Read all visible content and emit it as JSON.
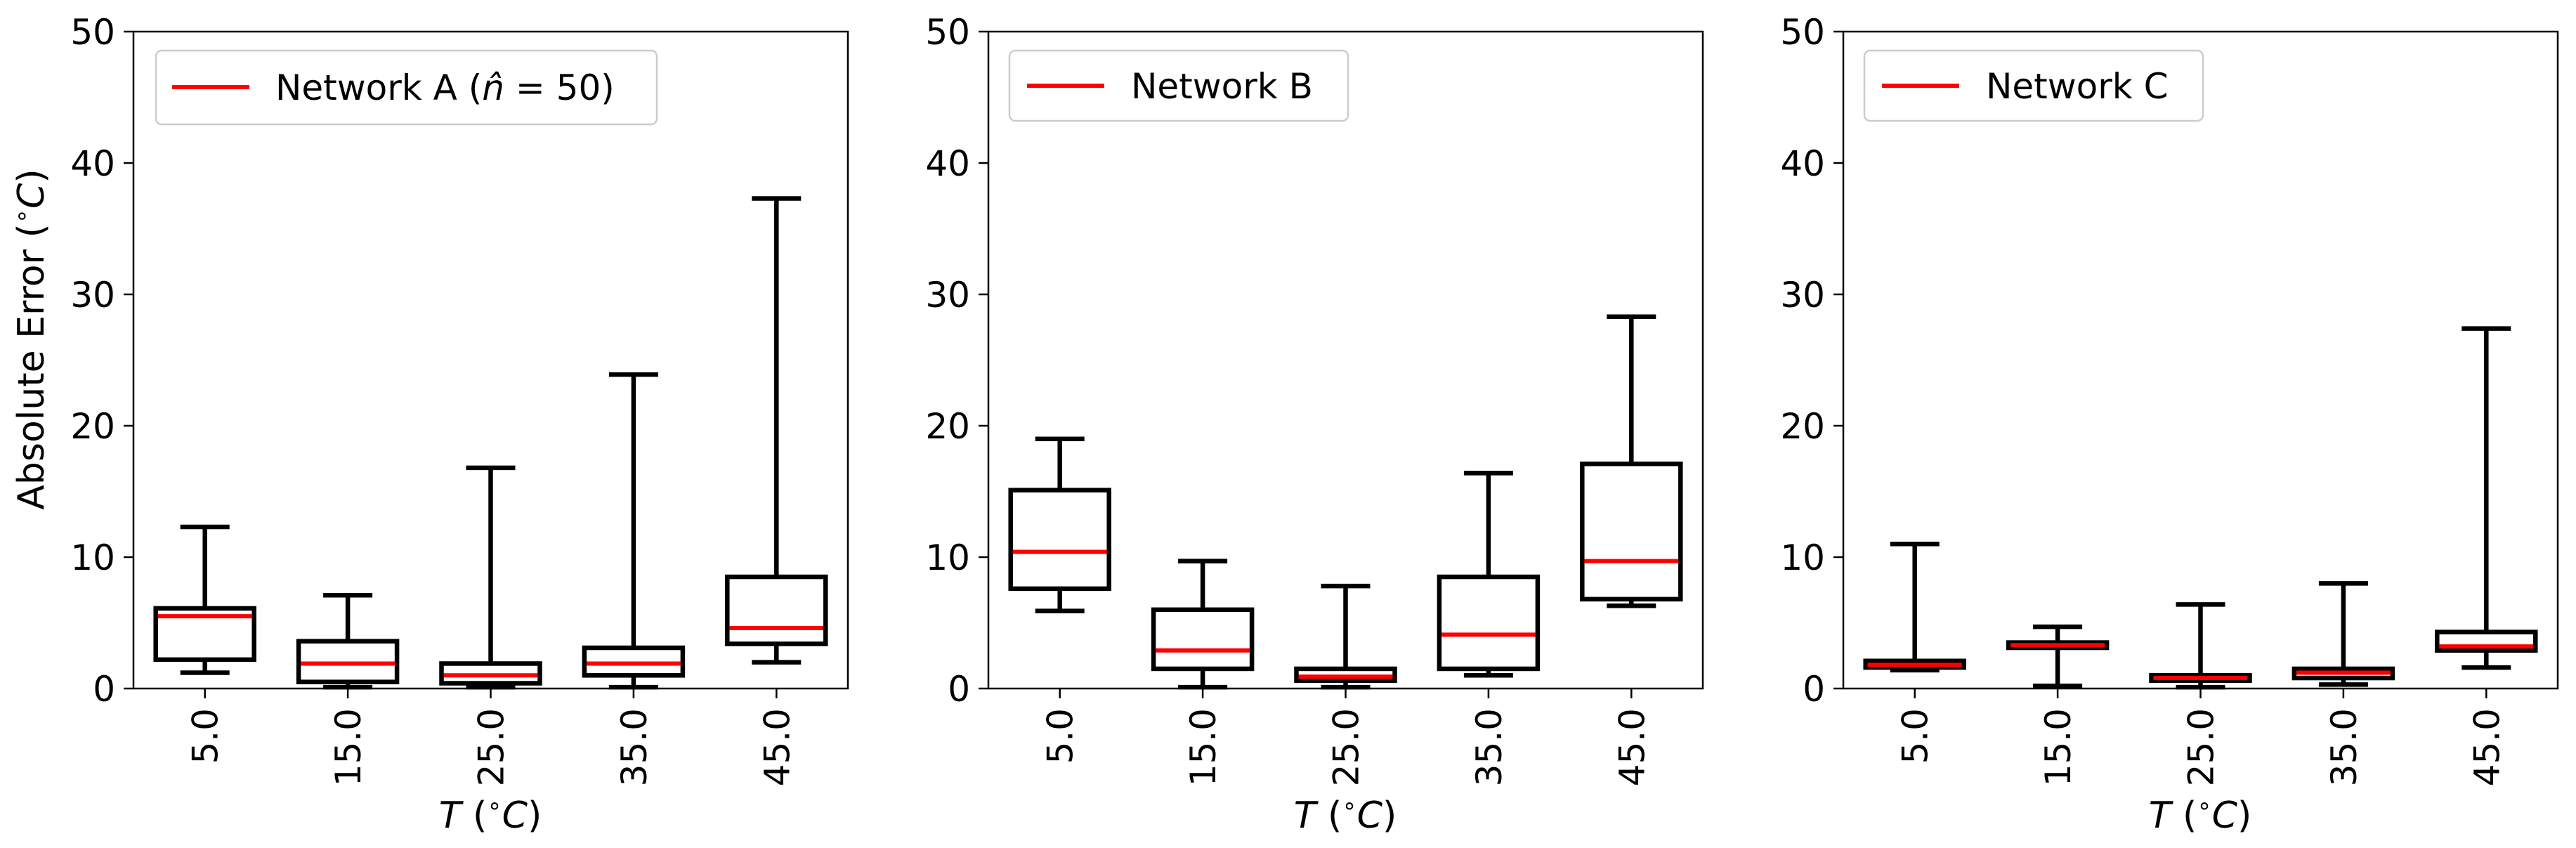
{
  "figure": {
    "ylabel": "Absolute Error (∘C)",
    "ylabel_parts": {
      "main": "Absolute Error (",
      "deg": "∘",
      "unit": "C",
      "close": ")"
    },
    "xlabel_parts": {
      "var": "T",
      "open": " (",
      "deg": "∘",
      "unit": "C",
      "close": ")"
    },
    "colors": {
      "box": "#000000",
      "median": "#ff0000",
      "background": "#ffffff"
    }
  },
  "chart_data": [
    {
      "type": "boxplot",
      "legend": "Network A (n̂ = 50)",
      "legend_parts": {
        "pre": "Network A (",
        "nhat": "n̂",
        "post": " = 50)"
      },
      "legend_placement": "top-left",
      "xlabel": "T (∘C)",
      "ylabel": "Absolute Error (∘C)",
      "ylim": [
        0,
        50
      ],
      "yticks": [
        "0",
        "10",
        "20",
        "30",
        "40",
        "50"
      ],
      "categories": [
        "5.0",
        "15.0",
        "25.0",
        "35.0",
        "45.0"
      ],
      "boxes": [
        {
          "whislo": 1.2,
          "q1": 2.2,
          "med": 5.5,
          "q3": 6.1,
          "whishi": 12.3
        },
        {
          "whislo": 0.1,
          "q1": 0.5,
          "med": 1.9,
          "q3": 3.6,
          "whishi": 7.1
        },
        {
          "whislo": 0.1,
          "q1": 0.4,
          "med": 1.0,
          "q3": 1.9,
          "whishi": 16.8
        },
        {
          "whislo": 0.1,
          "q1": 1.0,
          "med": 1.9,
          "q3": 3.1,
          "whishi": 23.9
        },
        {
          "whislo": 2.0,
          "q1": 3.4,
          "med": 4.6,
          "q3": 8.5,
          "whishi": 37.3
        }
      ]
    },
    {
      "type": "boxplot",
      "legend": "Network B",
      "legend_placement": "top-left",
      "xlabel": "T (∘C)",
      "ylim": [
        0,
        50
      ],
      "yticks": [
        "0",
        "10",
        "20",
        "30",
        "40",
        "50"
      ],
      "categories": [
        "5.0",
        "15.0",
        "25.0",
        "35.0",
        "45.0"
      ],
      "boxes": [
        {
          "whislo": 5.9,
          "q1": 7.6,
          "med": 10.4,
          "q3": 15.1,
          "whishi": 19.0
        },
        {
          "whislo": 0.1,
          "q1": 1.5,
          "med": 2.9,
          "q3": 6.0,
          "whishi": 9.7
        },
        {
          "whislo": 0.1,
          "q1": 0.6,
          "med": 0.9,
          "q3": 1.5,
          "whishi": 7.8
        },
        {
          "whislo": 1.0,
          "q1": 1.5,
          "med": 4.1,
          "q3": 8.5,
          "whishi": 16.4
        },
        {
          "whislo": 6.3,
          "q1": 6.8,
          "med": 9.7,
          "q3": 17.1,
          "whishi": 28.3
        }
      ]
    },
    {
      "type": "boxplot",
      "legend": "Network C",
      "legend_placement": "top-left",
      "xlabel": "T (∘C)",
      "ylim": [
        0,
        50
      ],
      "yticks": [
        "0",
        "10",
        "20",
        "30",
        "40",
        "50"
      ],
      "categories": [
        "5.0",
        "15.0",
        "25.0",
        "35.0",
        "45.0"
      ],
      "boxes": [
        {
          "whislo": 1.4,
          "q1": 1.6,
          "med": 1.8,
          "q3": 2.1,
          "whishi": 11.0
        },
        {
          "whislo": 0.2,
          "q1": 3.1,
          "med": 3.3,
          "q3": 3.5,
          "whishi": 4.7
        },
        {
          "whislo": 0.1,
          "q1": 0.6,
          "med": 0.8,
          "q3": 1.0,
          "whishi": 6.4
        },
        {
          "whislo": 0.3,
          "q1": 0.8,
          "med": 1.2,
          "q3": 1.5,
          "whishi": 8.0
        },
        {
          "whislo": 1.6,
          "q1": 2.9,
          "med": 3.2,
          "q3": 4.3,
          "whishi": 27.4
        }
      ]
    }
  ]
}
